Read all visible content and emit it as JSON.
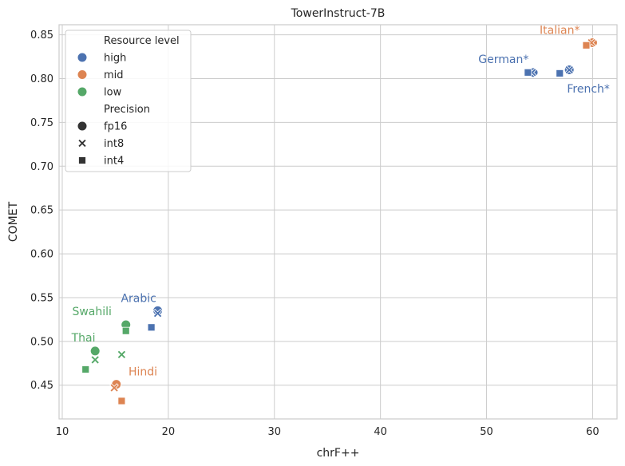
{
  "chart_data": {
    "type": "scatter",
    "title": "TowerInstruct-7B",
    "xlabel": "chrF++",
    "ylabel": "COMET",
    "xlim": [
      9.7,
      62.3
    ],
    "ylim": [
      0.4115,
      0.8615
    ],
    "xticks": [
      10,
      20,
      30,
      40,
      50,
      60
    ],
    "yticks": [
      0.45,
      0.5,
      0.55,
      0.6,
      0.65,
      0.7,
      0.75,
      0.8,
      0.85
    ],
    "grid": true,
    "colors": {
      "high": "#4c72b0",
      "mid": "#dd8452",
      "low": "#55a868"
    },
    "legend": {
      "placement": "top-left",
      "hue_title": "Resource level",
      "hue_entries": [
        {
          "key": "high",
          "label": "high"
        },
        {
          "key": "mid",
          "label": "mid"
        },
        {
          "key": "low",
          "label": "low"
        }
      ],
      "style_title": "Precision",
      "style_entries": [
        {
          "key": "circle",
          "label": "fp16"
        },
        {
          "key": "x",
          "label": "int8"
        },
        {
          "key": "square",
          "label": "int4"
        }
      ]
    },
    "points": [
      {
        "language": "Italian",
        "level": "mid",
        "precision": "fp16",
        "x": 60.0,
        "y": 0.841
      },
      {
        "language": "Italian",
        "level": "mid",
        "precision": "int8",
        "x": 59.9,
        "y": 0.841
      },
      {
        "language": "Italian",
        "level": "mid",
        "precision": "int4",
        "x": 59.4,
        "y": 0.838
      },
      {
        "language": "German",
        "level": "high",
        "precision": "fp16",
        "x": 54.4,
        "y": 0.807
      },
      {
        "language": "German",
        "level": "high",
        "precision": "int8",
        "x": 54.3,
        "y": 0.807
      },
      {
        "language": "German",
        "level": "high",
        "precision": "int4",
        "x": 53.9,
        "y": 0.807
      },
      {
        "language": "French",
        "level": "high",
        "precision": "fp16",
        "x": 57.8,
        "y": 0.81
      },
      {
        "language": "French",
        "level": "high",
        "precision": "int8",
        "x": 57.8,
        "y": 0.81
      },
      {
        "language": "French",
        "level": "high",
        "precision": "int4",
        "x": 56.9,
        "y": 0.806
      },
      {
        "language": "Arabic",
        "level": "high",
        "precision": "fp16",
        "x": 19.0,
        "y": 0.535
      },
      {
        "language": "Arabic",
        "level": "high",
        "precision": "int8",
        "x": 19.0,
        "y": 0.532
      },
      {
        "language": "Arabic",
        "level": "high",
        "precision": "int4",
        "x": 18.4,
        "y": 0.516
      },
      {
        "language": "Swahili",
        "level": "low",
        "precision": "fp16",
        "x": 16.0,
        "y": 0.519
      },
      {
        "language": "Swahili",
        "level": "low",
        "precision": "int8",
        "x": 15.6,
        "y": 0.485
      },
      {
        "language": "Swahili",
        "level": "low",
        "precision": "int4",
        "x": 16.0,
        "y": 0.512
      },
      {
        "language": "Thai",
        "level": "low",
        "precision": "fp16",
        "x": 13.1,
        "y": 0.489
      },
      {
        "language": "Thai",
        "level": "low",
        "precision": "int8",
        "x": 13.1,
        "y": 0.479
      },
      {
        "language": "Thai",
        "level": "low",
        "precision": "int4",
        "x": 12.2,
        "y": 0.468
      },
      {
        "language": "Hindi",
        "level": "mid",
        "precision": "fp16",
        "x": 15.1,
        "y": 0.451
      },
      {
        "language": "Hindi",
        "level": "mid",
        "precision": "int8",
        "x": 14.9,
        "y": 0.447
      },
      {
        "language": "Hindi",
        "level": "mid",
        "precision": "int4",
        "x": 15.6,
        "y": 0.432
      }
    ],
    "annotations": [
      {
        "text": "Italian*",
        "level": "mid",
        "x": 56.9,
        "y": 0.851,
        "anchor": "middle"
      },
      {
        "text": "German*",
        "level": "high",
        "x": 51.6,
        "y": 0.818,
        "anchor": "middle"
      },
      {
        "text": "French*",
        "level": "high",
        "x": 59.6,
        "y": 0.784,
        "anchor": "middle"
      },
      {
        "text": "Arabic",
        "level": "high",
        "x": 17.2,
        "y": 0.545,
        "anchor": "middle"
      },
      {
        "text": "Swahili",
        "level": "low",
        "x": 12.8,
        "y": 0.53,
        "anchor": "middle"
      },
      {
        "text": "Thai",
        "level": "low",
        "x": 12.0,
        "y": 0.5,
        "anchor": "middle"
      },
      {
        "text": "Hindi",
        "level": "mid",
        "x": 17.6,
        "y": 0.461,
        "anchor": "middle"
      }
    ]
  }
}
